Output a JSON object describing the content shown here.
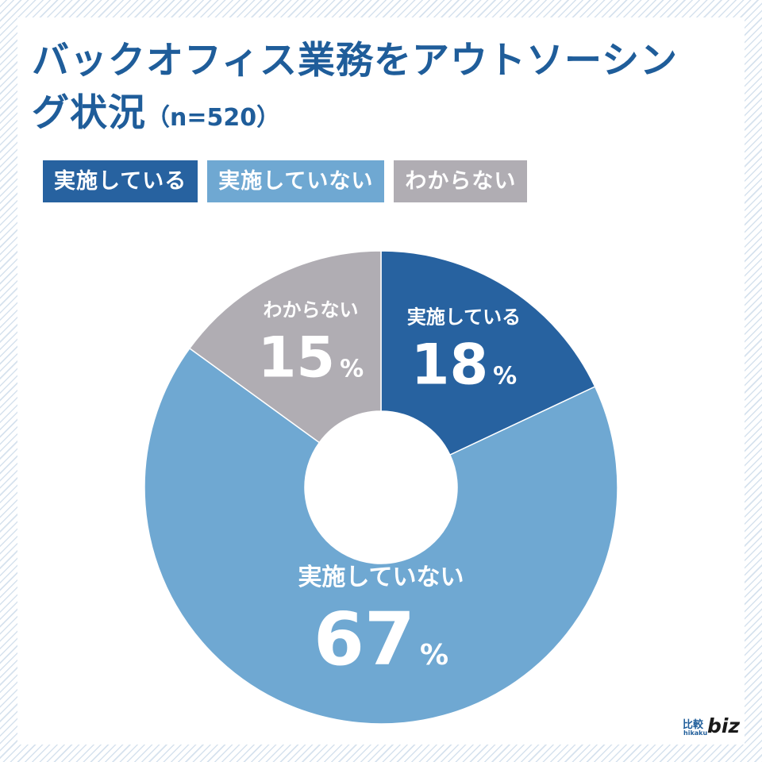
{
  "title": {
    "main": "バックオフィス業務をアウトソーシング状況",
    "sample": "（n=520）"
  },
  "legend": [
    {
      "label": "実施している",
      "color": "#2762a0"
    },
    {
      "label": "実施していない",
      "color": "#6fa8d2"
    },
    {
      "label": "わからない",
      "color": "#b0adb3"
    }
  ],
  "chart_data": {
    "type": "pie",
    "donut": true,
    "title": "バックオフィス業務をアウトソーシング状況（n=520）",
    "unit": "%",
    "slices": [
      {
        "label": "実施している",
        "value": 18,
        "color": "#2762a0"
      },
      {
        "label": "実施していない",
        "value": 67,
        "color": "#6fa8d2"
      },
      {
        "label": "わからない",
        "value": 15,
        "color": "#b0adb3"
      }
    ],
    "legend_position": "top-left"
  },
  "logo": {
    "kanji": "比較",
    "romaji": "hikaku",
    "word": "biz"
  },
  "colors": {
    "title": "#1f5d9a",
    "background_stripe": "#d6e2ee"
  }
}
